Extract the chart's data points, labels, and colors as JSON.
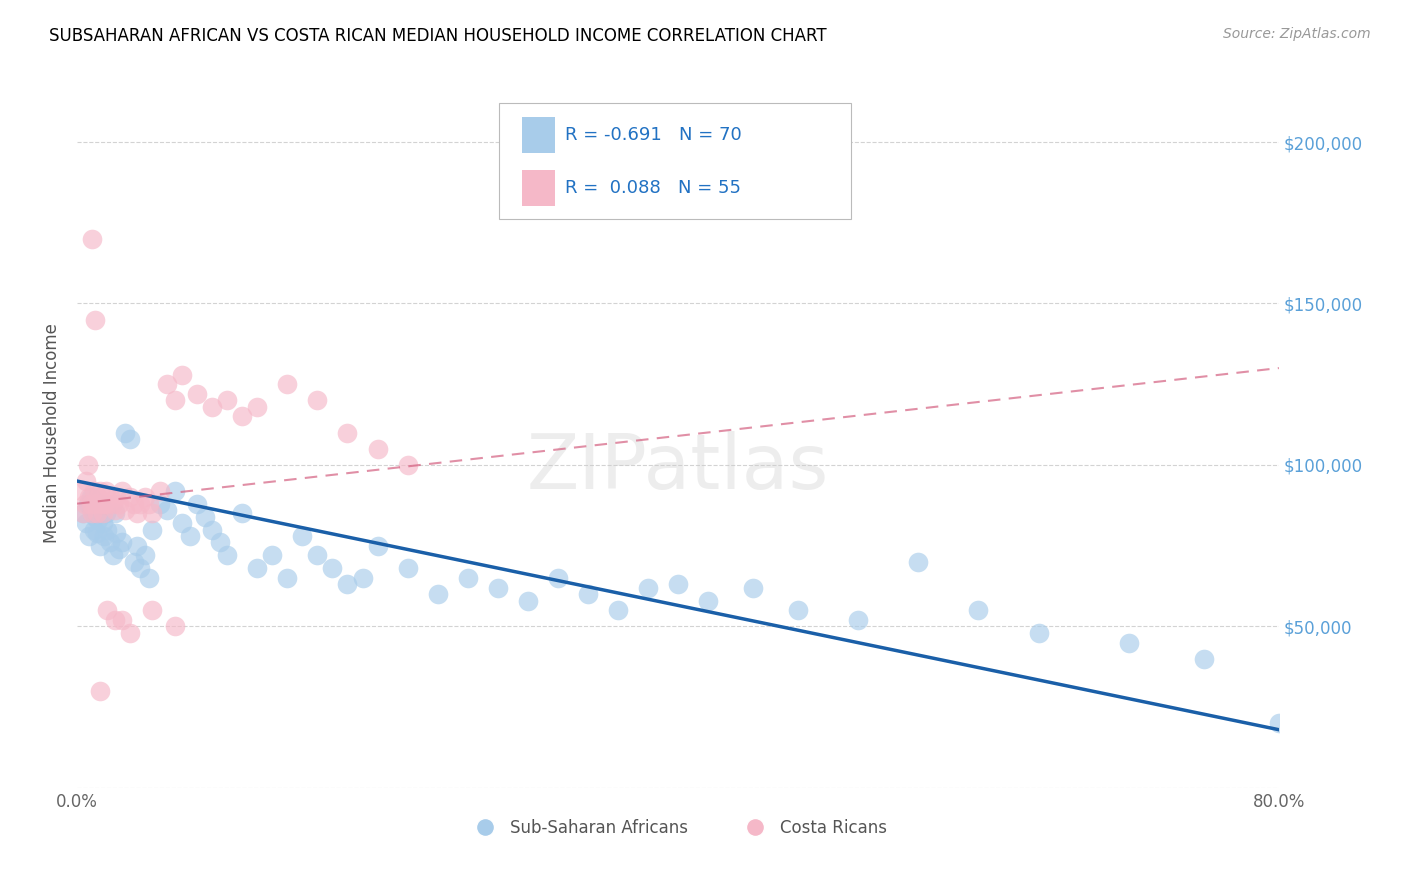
{
  "title": "SUBSAHARAN AFRICAN VS COSTA RICAN MEDIAN HOUSEHOLD INCOME CORRELATION CHART",
  "source": "Source: ZipAtlas.com",
  "ylabel": "Median Household Income",
  "xlim": [
    0.0,
    0.8
  ],
  "ylim": [
    0,
    220000
  ],
  "yticks": [
    0,
    50000,
    100000,
    150000,
    200000
  ],
  "xticks": [
    0.0,
    0.1,
    0.2,
    0.3,
    0.4,
    0.5,
    0.6,
    0.7,
    0.8
  ],
  "blue_color": "#a8ccea",
  "pink_color": "#f5b8c8",
  "blue_line_color": "#1a5fa8",
  "pink_line_color": "#d46080",
  "r_blue": "-0.691",
  "n_blue": "70",
  "r_pink": "0.088",
  "n_pink": "55",
  "legend_label_blue": "Sub-Saharan Africans",
  "legend_label_pink": "Costa Ricans",
  "watermark": "ZIPatlas",
  "blue_scatter_x": [
    0.004,
    0.006,
    0.007,
    0.008,
    0.009,
    0.01,
    0.011,
    0.012,
    0.013,
    0.014,
    0.015,
    0.016,
    0.017,
    0.018,
    0.019,
    0.02,
    0.022,
    0.024,
    0.025,
    0.026,
    0.028,
    0.03,
    0.032,
    0.035,
    0.038,
    0.04,
    0.042,
    0.045,
    0.048,
    0.05,
    0.055,
    0.06,
    0.065,
    0.07,
    0.075,
    0.08,
    0.085,
    0.09,
    0.095,
    0.1,
    0.11,
    0.12,
    0.13,
    0.14,
    0.15,
    0.16,
    0.17,
    0.18,
    0.19,
    0.2,
    0.22,
    0.24,
    0.26,
    0.28,
    0.3,
    0.32,
    0.34,
    0.36,
    0.38,
    0.4,
    0.42,
    0.45,
    0.48,
    0.52,
    0.56,
    0.6,
    0.64,
    0.7,
    0.75,
    0.8
  ],
  "blue_scatter_y": [
    85000,
    82000,
    88000,
    78000,
    90000,
    86000,
    80000,
    84000,
    79000,
    83000,
    75000,
    88000,
    82000,
    78000,
    85000,
    80000,
    76000,
    72000,
    85000,
    79000,
    74000,
    76000,
    110000,
    108000,
    70000,
    75000,
    68000,
    72000,
    65000,
    80000,
    88000,
    86000,
    92000,
    82000,
    78000,
    88000,
    84000,
    80000,
    76000,
    72000,
    85000,
    68000,
    72000,
    65000,
    78000,
    72000,
    68000,
    63000,
    65000,
    75000,
    68000,
    60000,
    65000,
    62000,
    58000,
    65000,
    60000,
    55000,
    62000,
    63000,
    58000,
    62000,
    55000,
    52000,
    70000,
    55000,
    48000,
    45000,
    40000,
    20000
  ],
  "pink_scatter_x": [
    0.003,
    0.004,
    0.005,
    0.006,
    0.007,
    0.008,
    0.009,
    0.01,
    0.011,
    0.012,
    0.013,
    0.014,
    0.015,
    0.016,
    0.017,
    0.018,
    0.019,
    0.02,
    0.022,
    0.024,
    0.025,
    0.026,
    0.028,
    0.03,
    0.032,
    0.035,
    0.038,
    0.04,
    0.042,
    0.045,
    0.048,
    0.05,
    0.055,
    0.06,
    0.065,
    0.07,
    0.08,
    0.09,
    0.1,
    0.11,
    0.12,
    0.14,
    0.16,
    0.18,
    0.2,
    0.22,
    0.03,
    0.035,
    0.05,
    0.065,
    0.02,
    0.025,
    0.01,
    0.012,
    0.015
  ],
  "pink_scatter_y": [
    92000,
    85000,
    88000,
    95000,
    100000,
    90000,
    88000,
    85000,
    92000,
    88000,
    85000,
    90000,
    92000,
    88000,
    85000,
    88000,
    92000,
    88000,
    90000,
    88000,
    86000,
    90000,
    88000,
    92000,
    86000,
    90000,
    88000,
    85000,
    88000,
    90000,
    88000,
    85000,
    92000,
    125000,
    120000,
    128000,
    122000,
    118000,
    120000,
    115000,
    118000,
    125000,
    120000,
    110000,
    105000,
    100000,
    52000,
    48000,
    55000,
    50000,
    55000,
    52000,
    170000,
    145000,
    30000
  ],
  "blue_line_y0": 95000,
  "blue_line_y1": 18000,
  "pink_line_y0": 88000,
  "pink_line_y1": 130000
}
